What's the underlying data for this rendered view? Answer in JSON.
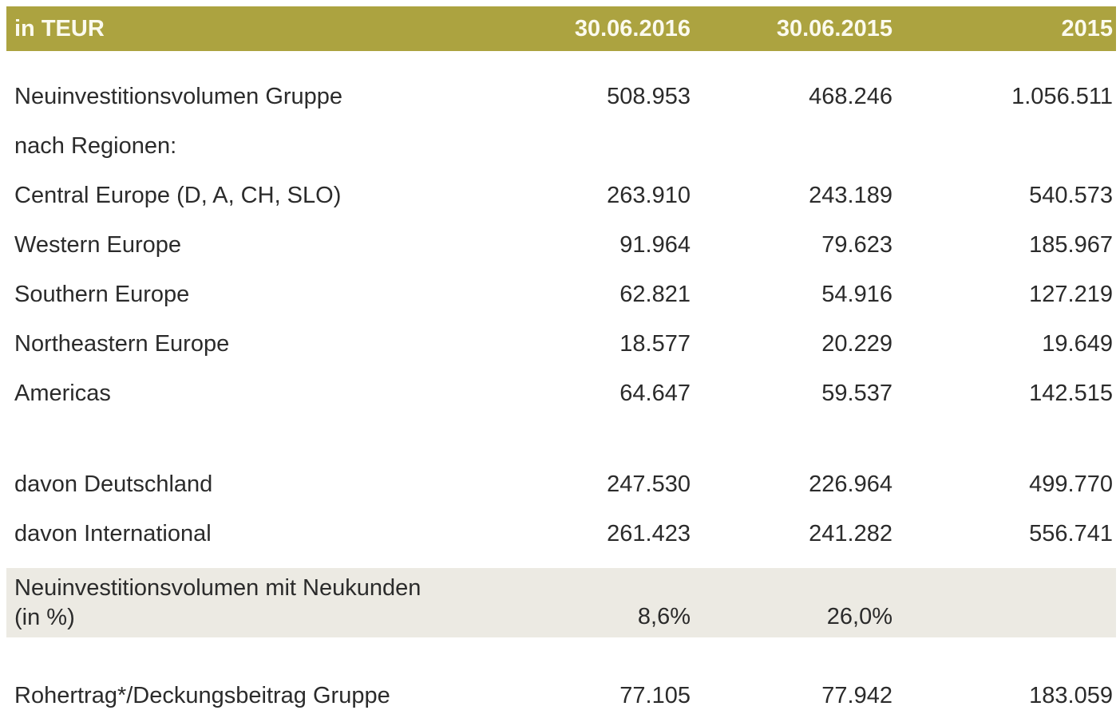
{
  "table": {
    "title_cell": "in TEUR",
    "columns": [
      "30.06.2016",
      "30.06.2015",
      "2015"
    ],
    "rows": [
      {
        "label": "Neuinvestitionsvolumen Gruppe",
        "values": [
          "508.953",
          "468.246",
          "1.056.511"
        ]
      },
      {
        "label": "nach Regionen:",
        "values": [
          "",
          "",
          ""
        ]
      },
      {
        "label": "Central Europe (D, A, CH, SLO)",
        "values": [
          "263.910",
          "243.189",
          "540.573"
        ]
      },
      {
        "label": "Western Europe",
        "values": [
          "91.964",
          "79.623",
          "185.967"
        ]
      },
      {
        "label": "Southern Europe",
        "values": [
          "62.821",
          "54.916",
          "127.219"
        ]
      },
      {
        "label": "Northeastern Europe",
        "values": [
          "18.577",
          "20.229",
          "19.649"
        ]
      },
      {
        "label": "Americas",
        "values": [
          "64.647",
          "59.537",
          "142.515"
        ]
      },
      {
        "label": "davon Deutschland",
        "values": [
          "247.530",
          "226.964",
          "499.770"
        ]
      },
      {
        "label": "davon International",
        "values": [
          "261.423",
          "241.282",
          "556.741"
        ]
      },
      {
        "label_line1": "Neuinvestitionsvolumen mit Neukunden",
        "label_line2": "(in %)",
        "values": [
          "8,6%",
          "26,0%",
          ""
        ],
        "highlighted": true
      },
      {
        "label": "Rohertrag*/Deckungsbeitrag Gruppe",
        "values": [
          "77.105",
          "77.942",
          "183.059"
        ]
      }
    ],
    "colors": {
      "header_bg": "#ACA340",
      "header_text": "#FBFAEE",
      "highlight_bg": "#ECEAE3",
      "body_text": "#2B2B2B"
    }
  }
}
